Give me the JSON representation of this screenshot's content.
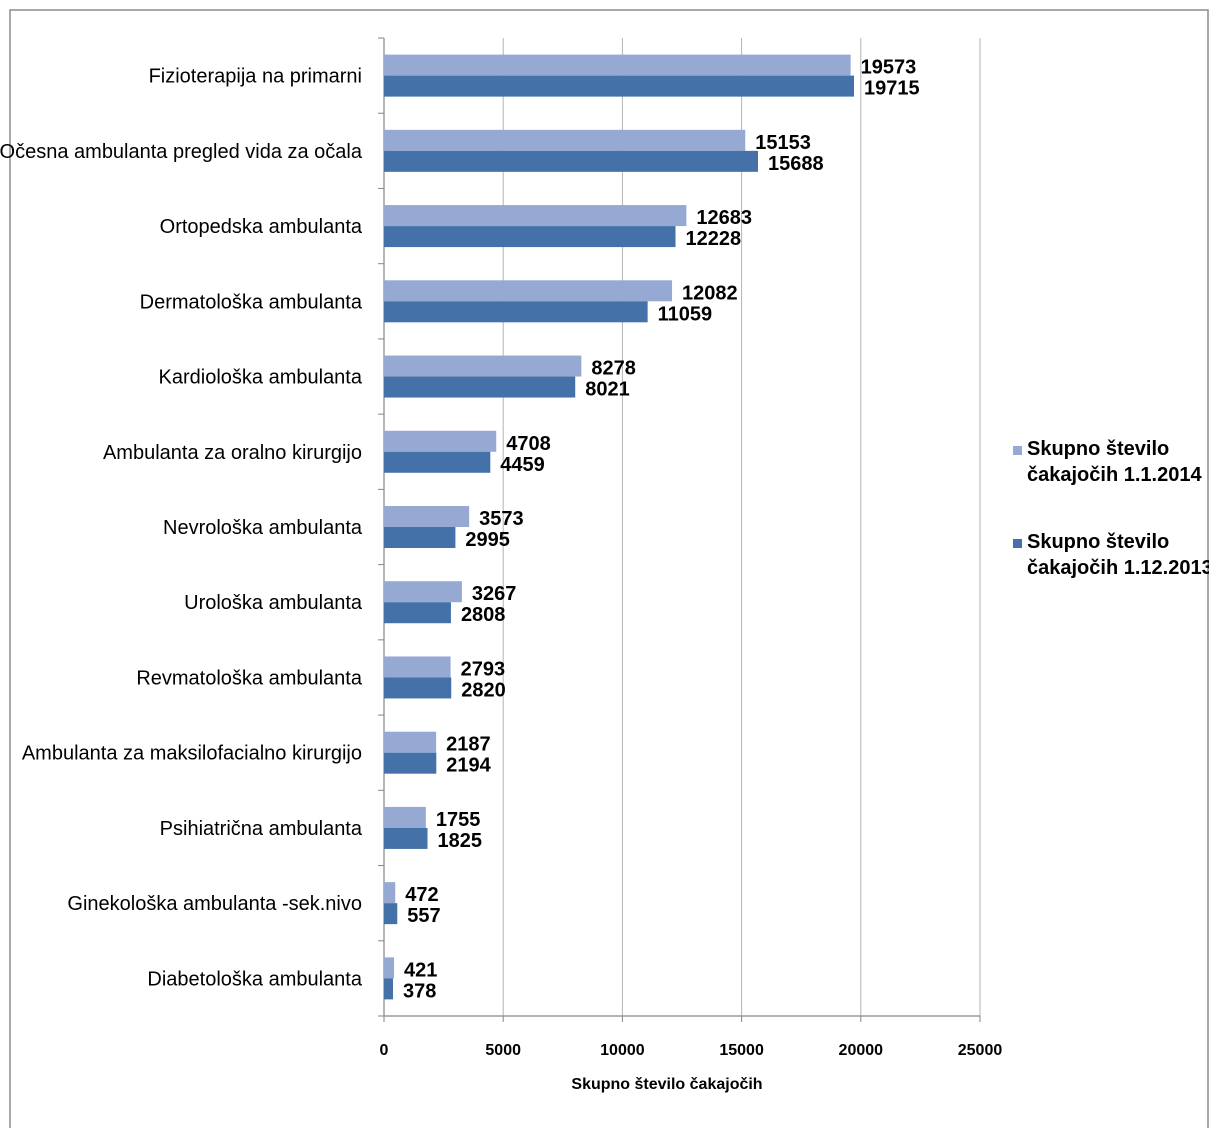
{
  "chart_data": {
    "type": "bar",
    "orientation": "horizontal",
    "categories": [
      "Fizioterapija na primarni",
      "Očesna ambulanta  pregled vida za očala",
      "Ortopedska ambulanta",
      "Dermatološka ambulanta",
      "Kardiološka ambulanta",
      "Ambulanta za oralno kirurgijo",
      "Nevrološka ambulanta",
      "Urološka ambulanta",
      "Revmatološka ambulanta",
      "Ambulanta za maksilofacialno kirurgijo",
      "Psihiatrična ambulanta",
      "Ginekološka ambulanta -sek.nivo",
      "Diabetološka ambulanta"
    ],
    "series": [
      {
        "name_lines": [
          "Skupno število",
          "čakajočih 1.1.2014"
        ],
        "color": "#95a9d3",
        "values": [
          19573,
          15153,
          12683,
          12082,
          8278,
          4708,
          3573,
          3267,
          2793,
          2187,
          1755,
          472,
          421
        ]
      },
      {
        "name_lines": [
          "Skupno število",
          "čakajočih 1.12.2013"
        ],
        "color": "#4472a8",
        "values": [
          19715,
          15688,
          12228,
          11059,
          8021,
          4459,
          2995,
          2808,
          2820,
          2194,
          1825,
          557,
          378
        ]
      }
    ],
    "xlim": [
      0,
      25000
    ],
    "xticks": [
      0,
      5000,
      10000,
      15000,
      20000,
      25000
    ],
    "xlabel": "Skupno število čakajočih",
    "grid": "vertical",
    "legend": "right",
    "data_labels": true
  }
}
